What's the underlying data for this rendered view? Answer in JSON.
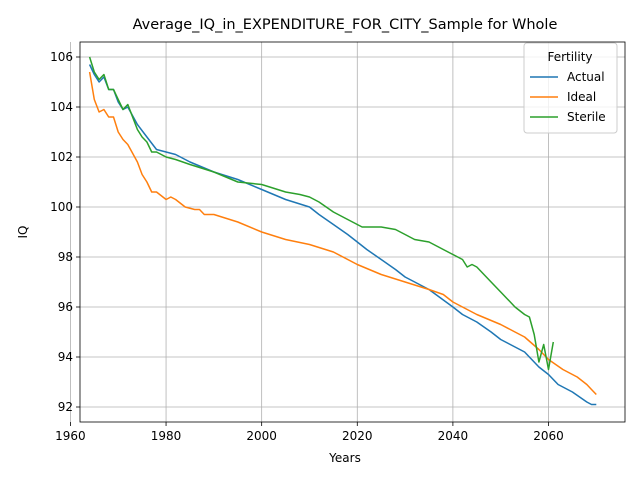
{
  "chart_data": {
    "type": "line",
    "title": "Average_IQ_in_EXPENDITURE_FOR_CITY_Sample for Whole",
    "xlabel": "Years",
    "ylabel": "IQ",
    "xlim": [
      1962,
      2076
    ],
    "ylim": [
      91.4,
      106.6
    ],
    "xticks": [
      1960,
      1980,
      2000,
      2020,
      2040,
      2060
    ],
    "yticks": [
      92,
      94,
      96,
      98,
      100,
      102,
      104,
      106
    ],
    "grid": true,
    "legend": {
      "title": "Fertility",
      "placement": "top-right"
    },
    "series": [
      {
        "name": "Actual",
        "color": "#1f77b4",
        "points": [
          [
            1964,
            105.7
          ],
          [
            1965,
            105.3
          ],
          [
            1966,
            105.0
          ],
          [
            1967,
            105.2
          ],
          [
            1968,
            104.7
          ],
          [
            1969,
            104.7
          ],
          [
            1970,
            104.2
          ],
          [
            1971,
            103.9
          ],
          [
            1972,
            104.0
          ],
          [
            1974,
            103.3
          ],
          [
            1976,
            102.8
          ],
          [
            1978,
            102.3
          ],
          [
            1980,
            102.2
          ],
          [
            1982,
            102.1
          ],
          [
            1985,
            101.8
          ],
          [
            1990,
            101.4
          ],
          [
            1995,
            101.1
          ],
          [
            2000,
            100.7
          ],
          [
            2005,
            100.3
          ],
          [
            2010,
            100.0
          ],
          [
            2012,
            99.7
          ],
          [
            2015,
            99.3
          ],
          [
            2018,
            98.9
          ],
          [
            2020,
            98.6
          ],
          [
            2022,
            98.3
          ],
          [
            2025,
            97.9
          ],
          [
            2028,
            97.5
          ],
          [
            2030,
            97.2
          ],
          [
            2035,
            96.7
          ],
          [
            2040,
            96.0
          ],
          [
            2042,
            95.7
          ],
          [
            2045,
            95.4
          ],
          [
            2048,
            95.0
          ],
          [
            2050,
            94.7
          ],
          [
            2055,
            94.2
          ],
          [
            2058,
            93.6
          ],
          [
            2060,
            93.3
          ],
          [
            2062,
            92.9
          ],
          [
            2065,
            92.6
          ],
          [
            2068,
            92.2
          ],
          [
            2069,
            92.1
          ],
          [
            2070,
            92.1
          ]
        ]
      },
      {
        "name": "Ideal",
        "color": "#ff7f0e",
        "points": [
          [
            1964,
            105.4
          ],
          [
            1965,
            104.3
          ],
          [
            1966,
            103.8
          ],
          [
            1967,
            103.9
          ],
          [
            1968,
            103.6
          ],
          [
            1969,
            103.6
          ],
          [
            1970,
            103.0
          ],
          [
            1971,
            102.7
          ],
          [
            1972,
            102.5
          ],
          [
            1974,
            101.8
          ],
          [
            1975,
            101.3
          ],
          [
            1976,
            101.0
          ],
          [
            1977,
            100.6
          ],
          [
            1978,
            100.6
          ],
          [
            1980,
            100.3
          ],
          [
            1981,
            100.4
          ],
          [
            1982,
            100.3
          ],
          [
            1984,
            100.0
          ],
          [
            1986,
            99.9
          ],
          [
            1987,
            99.9
          ],
          [
            1988,
            99.7
          ],
          [
            1990,
            99.7
          ],
          [
            1995,
            99.4
          ],
          [
            2000,
            99.0
          ],
          [
            2005,
            98.7
          ],
          [
            2010,
            98.5
          ],
          [
            2015,
            98.2
          ],
          [
            2020,
            97.7
          ],
          [
            2025,
            97.3
          ],
          [
            2030,
            97.0
          ],
          [
            2035,
            96.7
          ],
          [
            2038,
            96.5
          ],
          [
            2040,
            96.2
          ],
          [
            2045,
            95.7
          ],
          [
            2050,
            95.3
          ],
          [
            2053,
            95.0
          ],
          [
            2055,
            94.8
          ],
          [
            2058,
            94.3
          ],
          [
            2060,
            93.9
          ],
          [
            2063,
            93.5
          ],
          [
            2066,
            93.2
          ],
          [
            2068,
            92.9
          ],
          [
            2069,
            92.7
          ],
          [
            2070,
            92.5
          ]
        ]
      },
      {
        "name": "Sterile",
        "color": "#2ca02c",
        "points": [
          [
            1964,
            106.0
          ],
          [
            1965,
            105.4
          ],
          [
            1966,
            105.1
          ],
          [
            1967,
            105.3
          ],
          [
            1968,
            104.7
          ],
          [
            1969,
            104.7
          ],
          [
            1970,
            104.3
          ],
          [
            1971,
            103.9
          ],
          [
            1972,
            104.1
          ],
          [
            1974,
            103.1
          ],
          [
            1975,
            102.8
          ],
          [
            1976,
            102.6
          ],
          [
            1977,
            102.2
          ],
          [
            1978,
            102.2
          ],
          [
            1980,
            102.0
          ],
          [
            1982,
            101.9
          ],
          [
            1985,
            101.7
          ],
          [
            1990,
            101.4
          ],
          [
            1995,
            101.0
          ],
          [
            2000,
            100.9
          ],
          [
            2005,
            100.6
          ],
          [
            2008,
            100.5
          ],
          [
            2010,
            100.4
          ],
          [
            2012,
            100.2
          ],
          [
            2015,
            99.8
          ],
          [
            2018,
            99.5
          ],
          [
            2020,
            99.3
          ],
          [
            2021,
            99.2
          ],
          [
            2022,
            99.2
          ],
          [
            2025,
            99.2
          ],
          [
            2028,
            99.1
          ],
          [
            2030,
            98.9
          ],
          [
            2032,
            98.7
          ],
          [
            2035,
            98.6
          ],
          [
            2038,
            98.3
          ],
          [
            2040,
            98.1
          ],
          [
            2042,
            97.9
          ],
          [
            2043,
            97.6
          ],
          [
            2044,
            97.7
          ],
          [
            2045,
            97.6
          ],
          [
            2048,
            97.0
          ],
          [
            2050,
            96.6
          ],
          [
            2052,
            96.2
          ],
          [
            2053,
            96.0
          ],
          [
            2055,
            95.7
          ],
          [
            2056,
            95.6
          ],
          [
            2057,
            94.9
          ],
          [
            2058,
            93.8
          ],
          [
            2059,
            94.5
          ],
          [
            2060,
            93.5
          ],
          [
            2061,
            94.6
          ]
        ]
      }
    ]
  }
}
